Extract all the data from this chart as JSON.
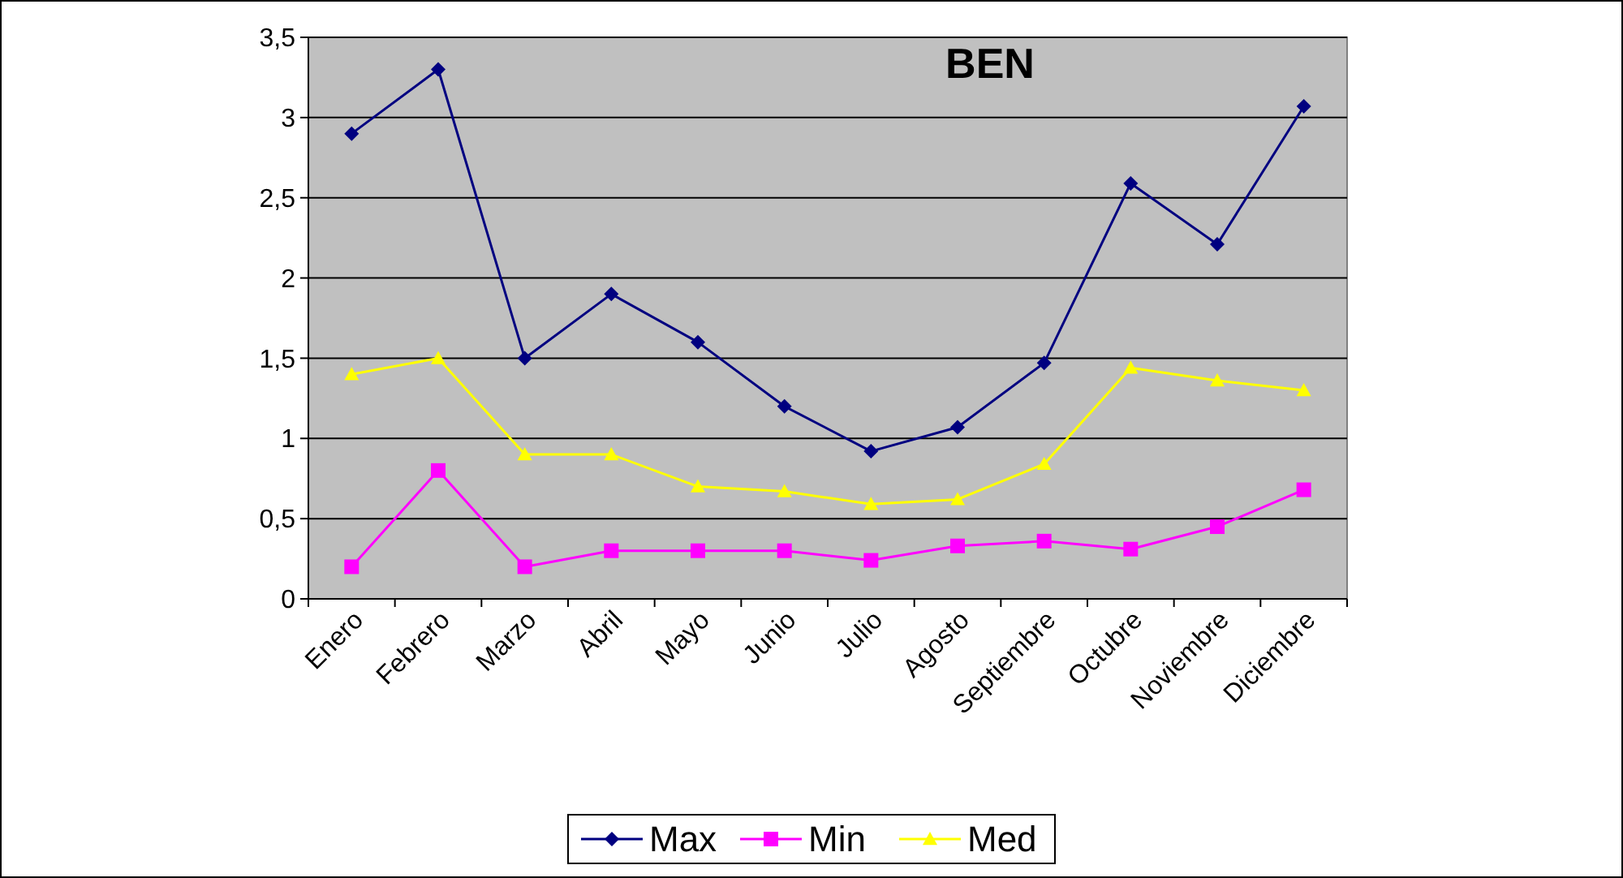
{
  "chart_data": {
    "type": "line",
    "title": "BEN",
    "categories": [
      "Enero",
      "Febrero",
      "Marzo",
      "Abril",
      "Mayo",
      "Junio",
      "Julio",
      "Agosto",
      "Septiembre",
      "Octubre",
      "Noviembre",
      "Diciembre"
    ],
    "series": [
      {
        "name": "Max",
        "color": "#000080",
        "marker": "diamond",
        "values": [
          2.9,
          3.3,
          1.5,
          1.9,
          1.6,
          1.2,
          0.92,
          1.07,
          1.47,
          2.59,
          2.21,
          3.07
        ]
      },
      {
        "name": "Min",
        "color": "#ff00ff",
        "marker": "square",
        "values": [
          0.2,
          0.8,
          0.2,
          0.3,
          0.3,
          0.3,
          0.24,
          0.33,
          0.36,
          0.31,
          0.45,
          0.68
        ]
      },
      {
        "name": "Med",
        "color": "#ffff00",
        "marker": "triangle",
        "values": [
          1.4,
          1.5,
          0.9,
          0.9,
          0.7,
          0.67,
          0.59,
          0.62,
          0.84,
          1.44,
          1.36,
          1.3
        ]
      }
    ],
    "ylim": [
      0,
      3.5
    ],
    "yticks": [
      0,
      {
        "value": 0.5,
        "label": "0,5"
      },
      1,
      {
        "value": 1.5,
        "label": "1,5"
      },
      2,
      {
        "value": 2.5,
        "label": "2,5"
      },
      3,
      {
        "value": 3.5,
        "label": "3,5"
      }
    ],
    "grid": "y",
    "legend": "bottom"
  }
}
